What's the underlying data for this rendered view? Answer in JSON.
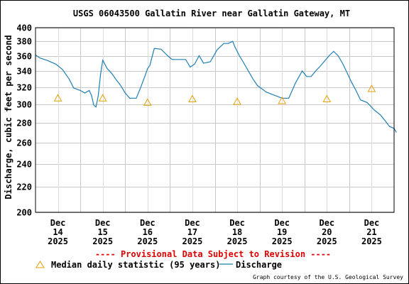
{
  "chart_data": {
    "type": "line",
    "title": "USGS 06043500 Gallatin River near Gallatin Gateway, MT",
    "ylabel": "Discharge, cubic feet per second",
    "xlabel": "",
    "y_scale": "log",
    "ylim": [
      200,
      400
    ],
    "grid": true,
    "y_ticks": [
      200,
      220,
      240,
      260,
      280,
      300,
      320,
      340,
      360,
      380,
      400
    ],
    "x_ticks": [
      {
        "day": 14,
        "label": [
          "Dec",
          "14",
          "2025"
        ]
      },
      {
        "day": 15,
        "label": [
          "Dec",
          "15",
          "2025"
        ]
      },
      {
        "day": 16,
        "label": [
          "Dec",
          "16",
          "2025"
        ]
      },
      {
        "day": 17,
        "label": [
          "Dec",
          "17",
          "2025"
        ]
      },
      {
        "day": 18,
        "label": [
          "Dec",
          "18",
          "2025"
        ]
      },
      {
        "day": 19,
        "label": [
          "Dec",
          "19",
          "2025"
        ]
      },
      {
        "day": 20,
        "label": [
          "Dec",
          "20",
          "2025"
        ]
      },
      {
        "day": 21,
        "label": [
          "Dec",
          "21",
          "2025"
        ]
      }
    ],
    "series": [
      {
        "name": "Discharge",
        "color": "#1f7fb4",
        "points": [
          [
            13.5,
            361
          ],
          [
            13.6,
            357
          ],
          [
            13.75,
            354
          ],
          [
            13.95,
            349
          ],
          [
            14.1,
            342
          ],
          [
            14.25,
            330
          ],
          [
            14.35,
            319
          ],
          [
            14.5,
            316
          ],
          [
            14.6,
            313
          ],
          [
            14.7,
            316
          ],
          [
            14.75,
            310
          ],
          [
            14.8,
            299
          ],
          [
            14.85,
            297
          ],
          [
            14.9,
            310
          ],
          [
            14.95,
            335
          ],
          [
            15.0,
            354
          ],
          [
            15.1,
            343
          ],
          [
            15.2,
            337
          ],
          [
            15.3,
            329
          ],
          [
            15.4,
            322
          ],
          [
            15.5,
            313
          ],
          [
            15.6,
            307
          ],
          [
            15.75,
            307
          ],
          [
            15.85,
            320
          ],
          [
            15.95,
            335
          ],
          [
            16.0,
            343
          ],
          [
            16.05,
            347
          ],
          [
            16.15,
            370
          ],
          [
            16.3,
            369
          ],
          [
            16.45,
            360
          ],
          [
            16.55,
            355
          ],
          [
            16.75,
            355
          ],
          [
            16.85,
            355
          ],
          [
            16.95,
            345
          ],
          [
            17.05,
            349
          ],
          [
            17.15,
            360
          ],
          [
            17.25,
            350
          ],
          [
            17.4,
            352
          ],
          [
            17.55,
            368
          ],
          [
            17.7,
            377
          ],
          [
            17.8,
            377
          ],
          [
            17.9,
            380
          ],
          [
            17.95,
            372
          ],
          [
            18.05,
            360
          ],
          [
            18.15,
            350
          ],
          [
            18.25,
            340
          ],
          [
            18.35,
            330
          ],
          [
            18.45,
            322
          ],
          [
            18.55,
            318
          ],
          [
            18.65,
            314
          ],
          [
            18.75,
            312
          ],
          [
            19.0,
            307
          ],
          [
            19.15,
            307
          ],
          [
            19.3,
            325
          ],
          [
            19.45,
            340
          ],
          [
            19.55,
            333
          ],
          [
            19.65,
            333
          ],
          [
            19.75,
            340
          ],
          [
            19.85,
            346
          ],
          [
            19.95,
            353
          ],
          [
            20.05,
            360
          ],
          [
            20.15,
            366
          ],
          [
            20.25,
            360
          ],
          [
            20.35,
            350
          ],
          [
            20.45,
            338
          ],
          [
            20.55,
            326
          ],
          [
            20.65,
            316
          ],
          [
            20.75,
            305
          ],
          [
            20.9,
            302
          ],
          [
            21.05,
            294
          ],
          [
            21.2,
            288
          ],
          [
            21.3,
            282
          ],
          [
            21.4,
            276
          ],
          [
            21.5,
            274
          ],
          [
            21.55,
            270
          ]
        ]
      }
    ],
    "median_daily_statistic": {
      "name": "Median daily statistic (95 years)",
      "color": "#e8a000",
      "points": [
        [
          14,
          307
        ],
        [
          15,
          307
        ],
        [
          16,
          302
        ],
        [
          17,
          306
        ],
        [
          18,
          303
        ],
        [
          19,
          304
        ],
        [
          20,
          306
        ],
        [
          21,
          318
        ]
      ]
    },
    "annotation": "---- Provisional Data Subject to Revision ----",
    "credit": "Graph courtesy of the U.S. Geological Survey"
  }
}
